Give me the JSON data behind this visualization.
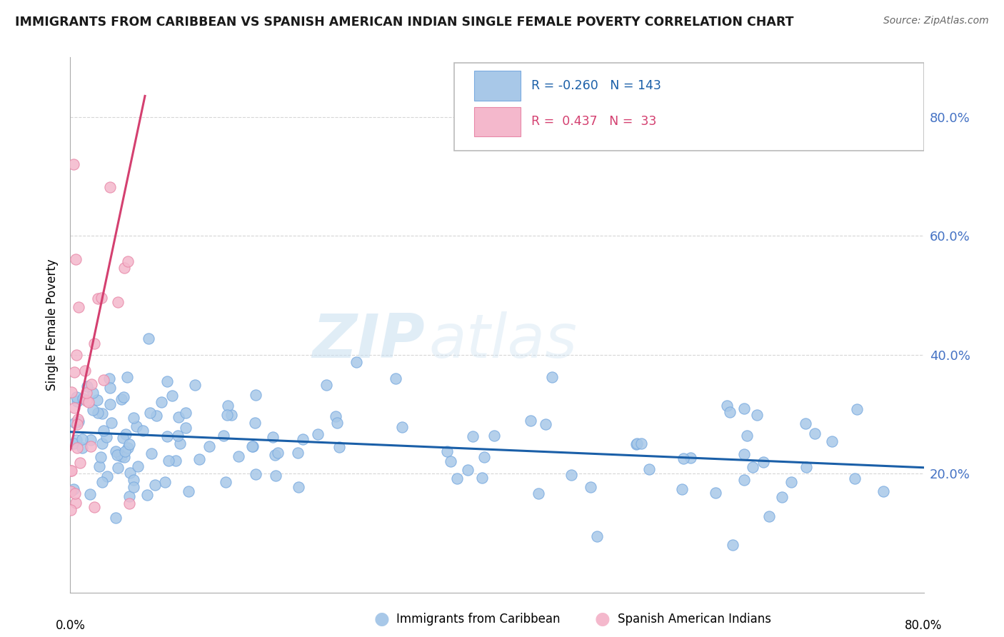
{
  "title": "IMMIGRANTS FROM CARIBBEAN VS SPANISH AMERICAN INDIAN SINGLE FEMALE POVERTY CORRELATION CHART",
  "source_text": "Source: ZipAtlas.com",
  "ylabel": "Single Female Poverty",
  "x_min": 0.0,
  "x_max": 80.0,
  "y_min": 0.0,
  "y_max": 90.0,
  "yticks": [
    20.0,
    40.0,
    60.0,
    80.0
  ],
  "ytick_labels": [
    "20.0%",
    "40.0%",
    "60.0%",
    "80.0%"
  ],
  "blue_color": "#a8c8e8",
  "blue_edge_color": "#7aabe0",
  "pink_color": "#f4b8cc",
  "pink_edge_color": "#e888a8",
  "blue_line_color": "#1a5fa8",
  "pink_line_color": "#d44070",
  "legend_blue_label": "Immigrants from Caribbean",
  "legend_pink_label": "Spanish American Indians",
  "R_blue": -0.26,
  "N_blue": 143,
  "R_pink": 0.437,
  "N_pink": 33,
  "watermark_zip": "ZIP",
  "watermark_atlas": "atlas",
  "background_color": "#ffffff",
  "grid_color": "#cccccc",
  "ytick_color": "#4472c4",
  "title_color": "#1a1a1a",
  "source_color": "#666666"
}
